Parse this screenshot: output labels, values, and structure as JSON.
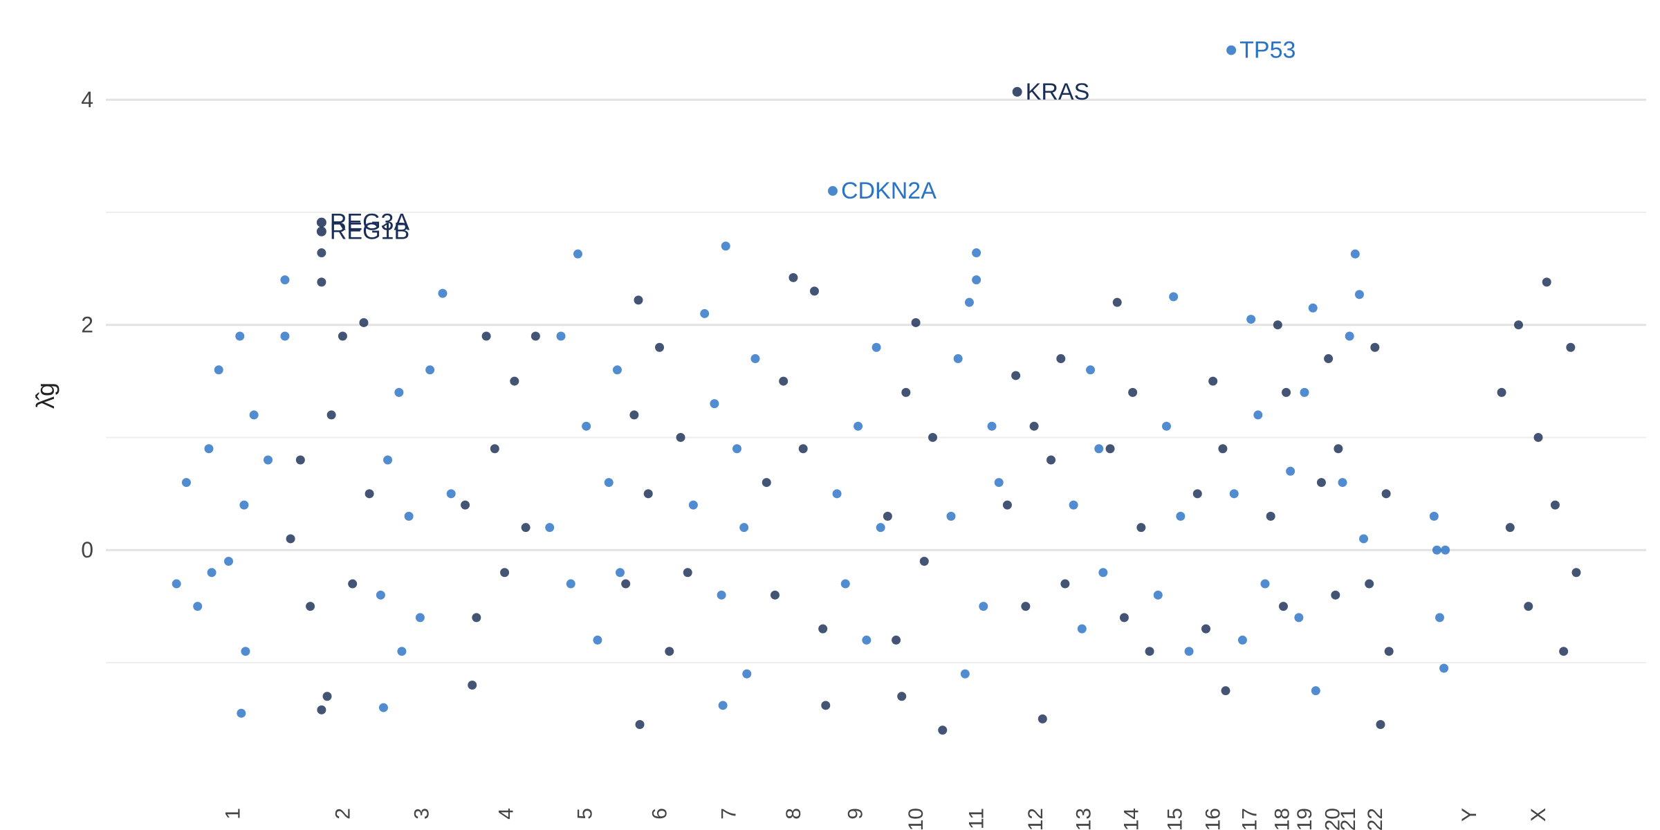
{
  "chart_data": {
    "type": "scatter",
    "ylabel": "λ̂g",
    "xlim": [
      0,
      100
    ],
    "ylim": [
      -2.1,
      4.8
    ],
    "yticks": [
      0,
      2,
      4
    ],
    "minor_gridlines": [
      -1,
      1,
      3
    ],
    "grid": true,
    "xticks": [
      {
        "value": 4.5,
        "label": "1"
      },
      {
        "value": 12.3,
        "label": "2"
      },
      {
        "value": 17.9,
        "label": "3"
      },
      {
        "value": 23.9,
        "label": "4"
      },
      {
        "value": 29.5,
        "label": "5"
      },
      {
        "value": 34.8,
        "label": "6"
      },
      {
        "value": 39.7,
        "label": "7"
      },
      {
        "value": 44.3,
        "label": "8"
      },
      {
        "value": 48.7,
        "label": "9"
      },
      {
        "value": 53.0,
        "label": "10"
      },
      {
        "value": 57.3,
        "label": "11"
      },
      {
        "value": 61.5,
        "label": "12"
      },
      {
        "value": 64.9,
        "label": "13"
      },
      {
        "value": 68.3,
        "label": "14"
      },
      {
        "value": 71.4,
        "label": "15"
      },
      {
        "value": 74.1,
        "label": "16"
      },
      {
        "value": 76.7,
        "label": "17"
      },
      {
        "value": 79.0,
        "label": "18"
      },
      {
        "value": 80.6,
        "label": "19"
      },
      {
        "value": 82.6,
        "label": "20"
      },
      {
        "value": 83.7,
        "label": "21"
      },
      {
        "value": 85.6,
        "label": "22"
      },
      {
        "value": 92.3,
        "label": "Y"
      },
      {
        "value": 97.2,
        "label": "X"
      }
    ],
    "series": [
      {
        "color": "#2a73c5",
        "x": [
          0.5,
          1.2,
          2,
          2.8,
          3.5,
          4.2,
          5,
          5.3,
          5.4,
          6,
          7,
          8.2,
          8.2,
          5.1,
          3,
          15,
          15.5,
          16.3,
          17,
          17.8,
          18.5,
          19.4,
          20,
          15.2,
          16.5,
          27,
          27.8,
          28.5,
          29,
          29.6,
          30.4,
          31.2,
          31.8,
          32,
          37.2,
          38,
          38.7,
          39.2,
          39.5,
          40.3,
          41,
          41.6,
          39.3,
          40.8,
          47.4,
          48,
          48.9,
          49.5,
          50.2,
          50.5,
          55.5,
          56,
          56.8,
          57.3,
          57.3,
          57.8,
          58.4,
          58.9,
          56.5,
          64.2,
          64.8,
          65.4,
          66,
          66.3,
          70.2,
          70.8,
          71.3,
          71.8,
          72.4,
          75.6,
          76.2,
          76.8,
          77.3,
          77.8,
          79.6,
          80.2,
          80.6,
          81.2,
          81.4,
          83.3,
          83.8,
          84.2,
          84.5,
          84.8,
          89.8,
          90,
          90.2,
          90.5,
          90.6
        ],
        "values": [
          -0.3,
          0.6,
          -0.5,
          0.9,
          1.6,
          -0.1,
          1.9,
          0.4,
          -0.9,
          1.2,
          0.8,
          2.4,
          1.9,
          -1.45,
          -0.2,
          -0.4,
          0.8,
          1.4,
          0.3,
          -0.6,
          1.6,
          2.28,
          0.5,
          -1.4,
          -0.9,
          0.2,
          1.9,
          -0.3,
          2.63,
          1.1,
          -0.8,
          0.6,
          1.6,
          -0.2,
          0.4,
          2.1,
          1.3,
          -0.4,
          2.7,
          0.9,
          -1.1,
          1.7,
          -1.38,
          0.2,
          0.5,
          -0.3,
          1.1,
          -0.8,
          1.8,
          0.2,
          0.3,
          1.7,
          2.2,
          2.64,
          2.4,
          -0.5,
          1.1,
          0.6,
          -1.1,
          0.4,
          -0.7,
          1.6,
          0.9,
          -0.2,
          -0.4,
          1.1,
          2.25,
          0.3,
          -0.9,
          0.5,
          -0.8,
          2.05,
          1.2,
          -0.3,
          0.7,
          -0.6,
          1.4,
          2.15,
          -1.25,
          0.6,
          1.9,
          2.63,
          2.27,
          0.1,
          0.3,
          0,
          -0.6,
          -1.05,
          0
        ]
      },
      {
        "color": "#1b2e57",
        "x": [
          8.6,
          9.3,
          10,
          10.8,
          10.8,
          10.8,
          11.5,
          12.3,
          13,
          13.8,
          14.2,
          11.2,
          21,
          21.8,
          22.5,
          23.1,
          23.8,
          24.5,
          25.3,
          26,
          21.5,
          32.4,
          33,
          33.3,
          33.4,
          34,
          34.8,
          35.5,
          36.3,
          36.8,
          42.4,
          43,
          43.6,
          44.3,
          45,
          45.8,
          46.4,
          46.6,
          51,
          51.6,
          52.3,
          53,
          53.6,
          54.2,
          54.9,
          52,
          59.5,
          60.1,
          60.8,
          61.4,
          62,
          62.6,
          63.3,
          63.6,
          66.8,
          67.3,
          67.8,
          68.4,
          69,
          69.6,
          73,
          73.6,
          74.1,
          74.8,
          75,
          78.2,
          78.7,
          79.1,
          79.3,
          81.8,
          82.3,
          82.8,
          83,
          85.2,
          85.6,
          86,
          86.4,
          86.6,
          94.6,
          95.2,
          95.8,
          96.5,
          97.2,
          97.8,
          98.4,
          99,
          99.5,
          99.9
        ],
        "values": [
          0.1,
          0.8,
          -0.5,
          2.64,
          2.38,
          -1.42,
          1.2,
          1.9,
          -0.3,
          2.02,
          0.5,
          -1.3,
          0.4,
          -0.6,
          1.9,
          0.9,
          -0.2,
          1.5,
          0.2,
          1.9,
          -1.2,
          -0.3,
          1.2,
          2.22,
          -1.55,
          0.5,
          1.8,
          -0.9,
          1.0,
          -0.2,
          0.6,
          -0.4,
          1.5,
          2.42,
          0.9,
          2.3,
          -0.7,
          -1.38,
          0.3,
          -0.8,
          1.4,
          2.02,
          -0.1,
          1.0,
          -1.6,
          -1.3,
          0.4,
          1.55,
          -0.5,
          1.1,
          -1.5,
          0.8,
          1.7,
          -0.3,
          0.9,
          2.2,
          -0.6,
          1.4,
          0.2,
          -0.9,
          0.5,
          -0.7,
          1.5,
          0.9,
          -1.25,
          0.3,
          2.0,
          -0.5,
          1.4,
          0.6,
          1.7,
          -0.4,
          0.9,
          -0.3,
          1.8,
          -1.55,
          0.5,
          -0.9,
          1.4,
          0.2,
          2.0,
          -0.5,
          1.0,
          2.38,
          0.4,
          -0.9,
          1.8,
          -0.2
        ]
      }
    ],
    "annotations": [
      {
        "text": "TP53",
        "x": 75.4,
        "y": 4.44,
        "color": "#2a73c5"
      },
      {
        "text": "KRAS",
        "x": 60.2,
        "y": 4.07,
        "color": "#1b2e57"
      },
      {
        "text": "CDKN2A",
        "x": 47.1,
        "y": 3.19,
        "color": "#2a73c5"
      },
      {
        "text": "REG3A",
        "x": 10.8,
        "y": 2.91,
        "color": "#1b2e57"
      },
      {
        "text": "REG1B",
        "x": 10.8,
        "y": 2.83,
        "color": "#1b2e57"
      }
    ]
  }
}
